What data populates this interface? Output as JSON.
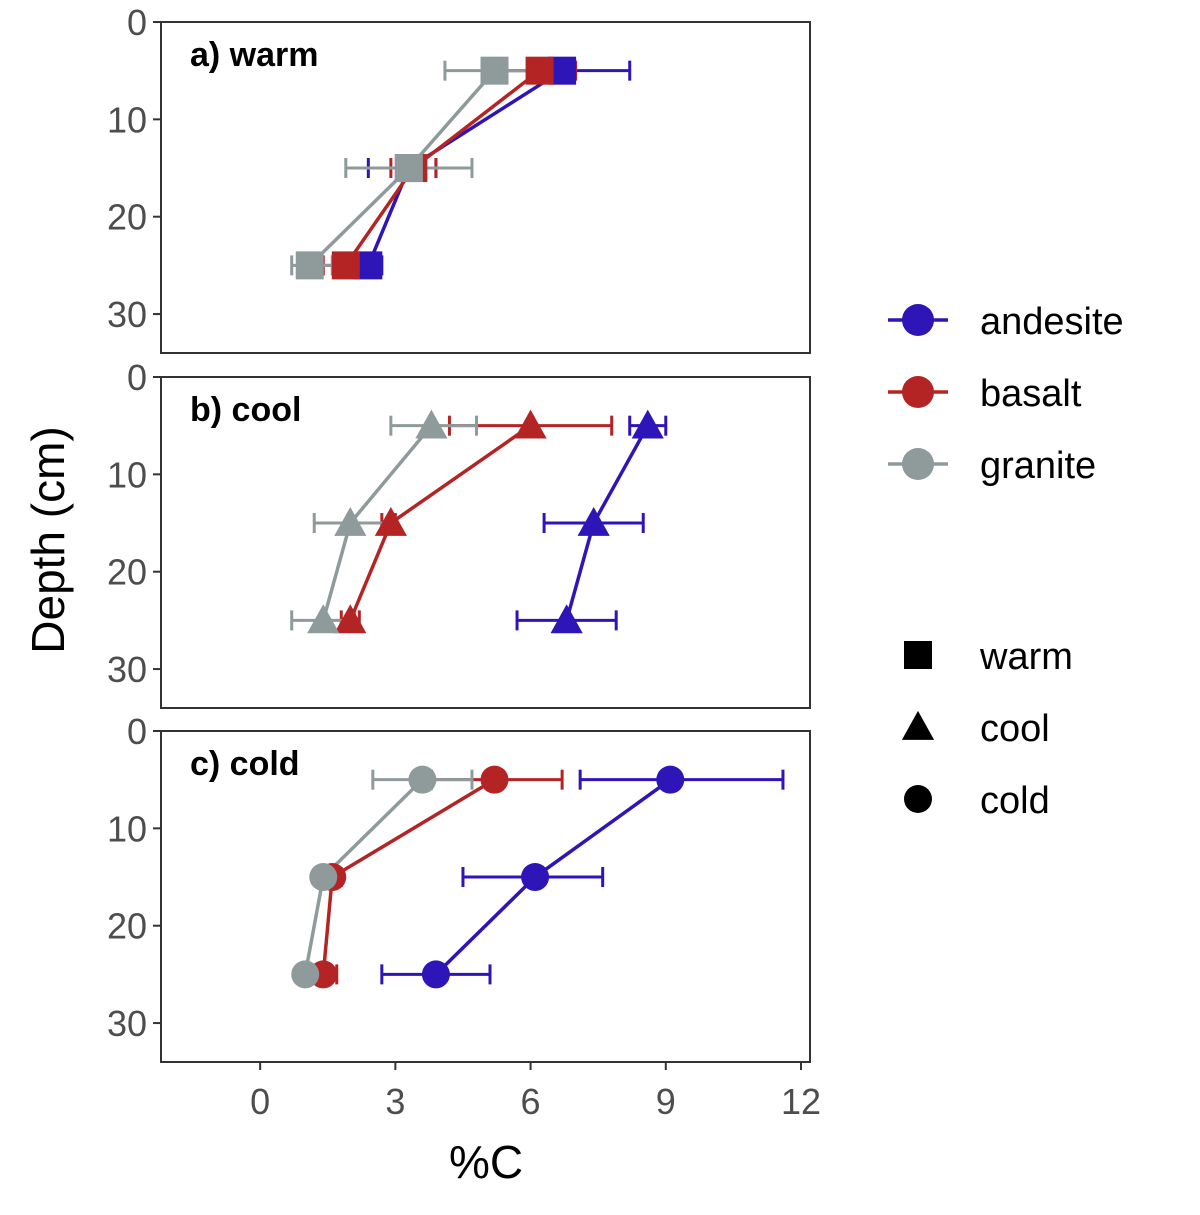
{
  "chart_data": {
    "type": "line",
    "subtype": "faceted depth profile with horizontal error bars",
    "xlabel": "%C",
    "ylabel": "Depth (cm)",
    "xlim": [
      -2.2,
      12.2
    ],
    "ylim": [
      0,
      34
    ],
    "y_reversed": true,
    "x_ticks": [
      "0",
      "3",
      "6",
      "9",
      "12"
    ],
    "y_ticks": [
      "0",
      "10",
      "20",
      "30"
    ],
    "grid": false,
    "colors": {
      "andesite": "#2e15b8",
      "basalt": "#b52424",
      "granite": "#8f9a9a"
    },
    "panels": [
      {
        "title": "a) warm",
        "marker": "square",
        "series": [
          {
            "name": "andesite",
            "points": [
              {
                "depth": 5,
                "x": 6.7,
                "xmin": 5.2,
                "xmax": 8.2
              },
              {
                "depth": 15,
                "x": 3.3,
                "xmin": 2.4,
                "xmax": 3.9
              },
              {
                "depth": 25,
                "x": 2.4,
                "xmin": 1.9,
                "xmax": 2.7
              }
            ]
          },
          {
            "name": "basalt",
            "points": [
              {
                "depth": 5,
                "x": 6.2,
                "xmin": 5.3,
                "xmax": 7.0
              },
              {
                "depth": 15,
                "x": 3.4,
                "xmin": 2.9,
                "xmax": 3.9
              },
              {
                "depth": 25,
                "x": 1.9,
                "xmin": 1.4,
                "xmax": 2.3
              }
            ]
          },
          {
            "name": "granite",
            "points": [
              {
                "depth": 5,
                "x": 5.2,
                "xmin": 4.1,
                "xmax": 6.4
              },
              {
                "depth": 15,
                "x": 3.3,
                "xmin": 1.9,
                "xmax": 4.7
              },
              {
                "depth": 25,
                "x": 1.1,
                "xmin": 0.7,
                "xmax": 1.6
              }
            ]
          }
        ]
      },
      {
        "title": "b) cool",
        "marker": "triangle",
        "series": [
          {
            "name": "andesite",
            "points": [
              {
                "depth": 5,
                "x": 8.6,
                "xmin": 8.2,
                "xmax": 9.0
              },
              {
                "depth": 15,
                "x": 7.4,
                "xmin": 6.3,
                "xmax": 8.5
              },
              {
                "depth": 25,
                "x": 6.8,
                "xmin": 5.7,
                "xmax": 7.9
              }
            ]
          },
          {
            "name": "basalt",
            "points": [
              {
                "depth": 5,
                "x": 6.0,
                "xmin": 4.2,
                "xmax": 7.8
              },
              {
                "depth": 15,
                "x": 2.9,
                "xmin": 2.7,
                "xmax": 3.0
              },
              {
                "depth": 25,
                "x": 2.0,
                "xmin": 1.8,
                "xmax": 2.2
              }
            ]
          },
          {
            "name": "granite",
            "points": [
              {
                "depth": 5,
                "x": 3.8,
                "xmin": 2.9,
                "xmax": 4.8
              },
              {
                "depth": 15,
                "x": 2.0,
                "xmin": 1.2,
                "xmax": 2.9
              },
              {
                "depth": 25,
                "x": 1.4,
                "xmin": 0.7,
                "xmax": 2.1
              }
            ]
          }
        ]
      },
      {
        "title": "c) cold",
        "marker": "circle",
        "series": [
          {
            "name": "andesite",
            "points": [
              {
                "depth": 5,
                "x": 9.1,
                "xmin": 7.1,
                "xmax": 11.6
              },
              {
                "depth": 15,
                "x": 6.1,
                "xmin": 4.5,
                "xmax": 7.6
              },
              {
                "depth": 25,
                "x": 3.9,
                "xmin": 2.7,
                "xmax": 5.1
              }
            ]
          },
          {
            "name": "basalt",
            "points": [
              {
                "depth": 5,
                "x": 5.2,
                "xmin": 3.8,
                "xmax": 6.7
              },
              {
                "depth": 15,
                "x": 1.6,
                "xmin": 1.4,
                "xmax": 1.8
              },
              {
                "depth": 25,
                "x": 1.4,
                "xmin": 1.2,
                "xmax": 1.7
              }
            ]
          },
          {
            "name": "granite",
            "points": [
              {
                "depth": 5,
                "x": 3.6,
                "xmin": 2.5,
                "xmax": 4.7
              },
              {
                "depth": 15,
                "x": 1.4,
                "xmin": 1.3,
                "xmax": 1.5
              },
              {
                "depth": 25,
                "x": 1.0,
                "xmin": 0.9,
                "xmax": 1.1
              }
            ]
          }
        ]
      }
    ],
    "legend": {
      "placement": "right",
      "color_items": [
        "andesite",
        "basalt",
        "granite"
      ],
      "shape_items": [
        {
          "label": "warm",
          "marker": "square"
        },
        {
          "label": "cool",
          "marker": "triangle"
        },
        {
          "label": "cold",
          "marker": "circle"
        }
      ]
    }
  }
}
